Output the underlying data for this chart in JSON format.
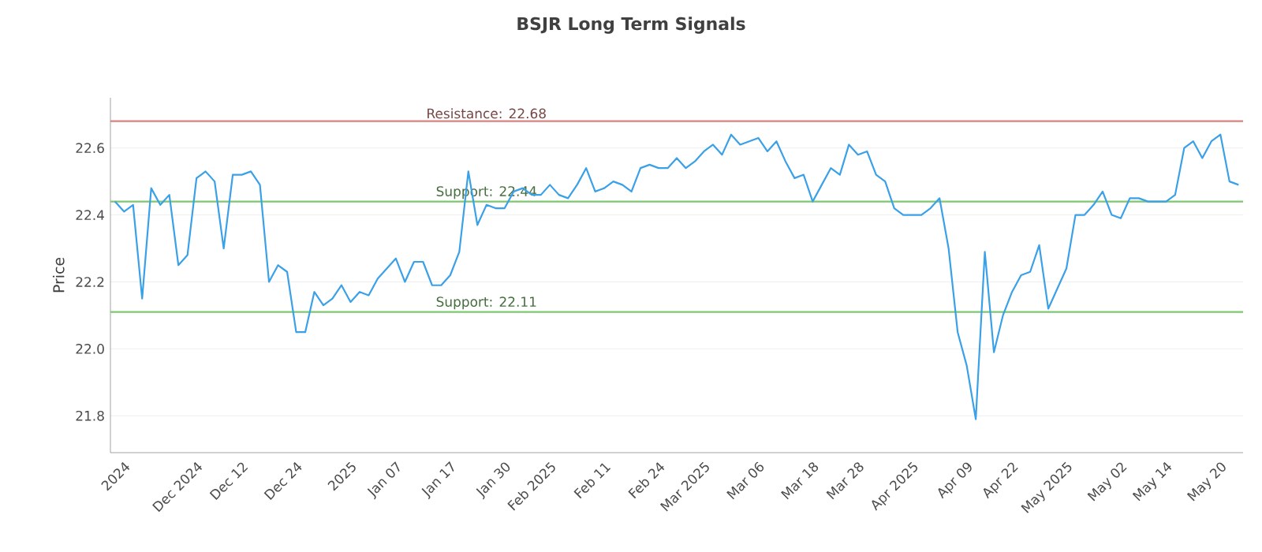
{
  "chart_data": {
    "type": "line",
    "title": "BSJR Long Term Signals",
    "ylabel": "Price",
    "categories": [
      null,
      "2024",
      null,
      null,
      null,
      null,
      null,
      null,
      null,
      "Dec 2024",
      null,
      null,
      null,
      null,
      "Dec 12",
      null,
      null,
      null,
      null,
      null,
      "Dec 24",
      null,
      null,
      null,
      null,
      null,
      "2025",
      null,
      null,
      null,
      null,
      "Jan 07",
      null,
      null,
      null,
      null,
      null,
      "Jan 17",
      null,
      null,
      null,
      null,
      null,
      "Jan 30",
      null,
      null,
      null,
      null,
      "Feb 2025",
      null,
      null,
      null,
      null,
      null,
      "Feb 11",
      null,
      null,
      null,
      null,
      null,
      "Feb 24",
      null,
      null,
      null,
      null,
      "Mar 2025",
      null,
      null,
      null,
      null,
      null,
      "Mar 06",
      null,
      null,
      null,
      null,
      null,
      "Mar 18",
      null,
      null,
      null,
      null,
      "Mar 28",
      null,
      null,
      null,
      null,
      null,
      "Apr 2025",
      null,
      null,
      null,
      null,
      null,
      "Apr 09",
      null,
      null,
      null,
      null,
      "Apr 22",
      null,
      null,
      null,
      null,
      null,
      "May 2025",
      null,
      null,
      null,
      null,
      null,
      "May 02",
      null,
      null,
      null,
      null,
      "May 14",
      null,
      null,
      null,
      null,
      null,
      "May 20",
      null,
      null
    ],
    "series": [
      {
        "color": "#3aa0e8",
        "values": [
          22.44,
          22.41,
          22.43,
          22.15,
          22.48,
          22.43,
          22.46,
          22.25,
          22.28,
          22.51,
          22.53,
          22.5,
          22.3,
          22.52,
          22.52,
          22.53,
          22.49,
          22.2,
          22.25,
          22.23,
          22.05,
          22.05,
          22.17,
          22.13,
          22.15,
          22.19,
          22.14,
          22.17,
          22.16,
          22.21,
          22.24,
          22.27,
          22.2,
          22.26,
          22.26,
          22.19,
          22.19,
          22.22,
          22.29,
          22.53,
          22.37,
          22.43,
          22.42,
          22.42,
          22.47,
          22.48,
          22.46,
          22.46,
          22.49,
          22.46,
          22.45,
          22.49,
          22.54,
          22.47,
          22.48,
          22.5,
          22.49,
          22.47,
          22.54,
          22.55,
          22.54,
          22.54,
          22.57,
          22.54,
          22.56,
          22.59,
          22.61,
          22.58,
          22.64,
          22.61,
          22.62,
          22.63,
          22.59,
          22.62,
          22.56,
          22.51,
          22.52,
          22.44,
          22.49,
          22.54,
          22.52,
          22.61,
          22.58,
          22.59,
          22.52,
          22.5,
          22.42,
          22.4,
          22.4,
          22.4,
          22.42,
          22.45,
          22.3,
          22.05,
          21.95,
          21.79,
          22.29,
          21.99,
          22.1,
          22.17,
          22.22,
          22.23,
          22.31,
          22.12,
          22.18,
          22.24,
          22.4,
          22.4,
          22.43,
          22.47,
          22.4,
          22.39,
          22.45,
          22.45,
          22.44,
          22.44,
          22.44,
          22.46,
          22.6,
          22.62,
          22.57,
          22.62,
          22.64,
          22.5,
          22.49
        ]
      }
    ],
    "ylim": [
      21.69,
      22.75
    ],
    "yticks": [
      21.8,
      {
        "value": 22,
        "label": "22.0"
      },
      22.2,
      22.4,
      22.6
    ],
    "grid": "y",
    "ref_lines": [
      {
        "axis": "y",
        "value": 22.68,
        "label": "Resistance: 22.68",
        "color": "#d9827f"
      },
      {
        "axis": "y",
        "value": 22.44,
        "label": "Support: 22.44",
        "color": "#7cc86e"
      },
      {
        "axis": "y",
        "value": 22.11,
        "label": "Support: 22.11",
        "color": "#7cc86e"
      }
    ]
  }
}
